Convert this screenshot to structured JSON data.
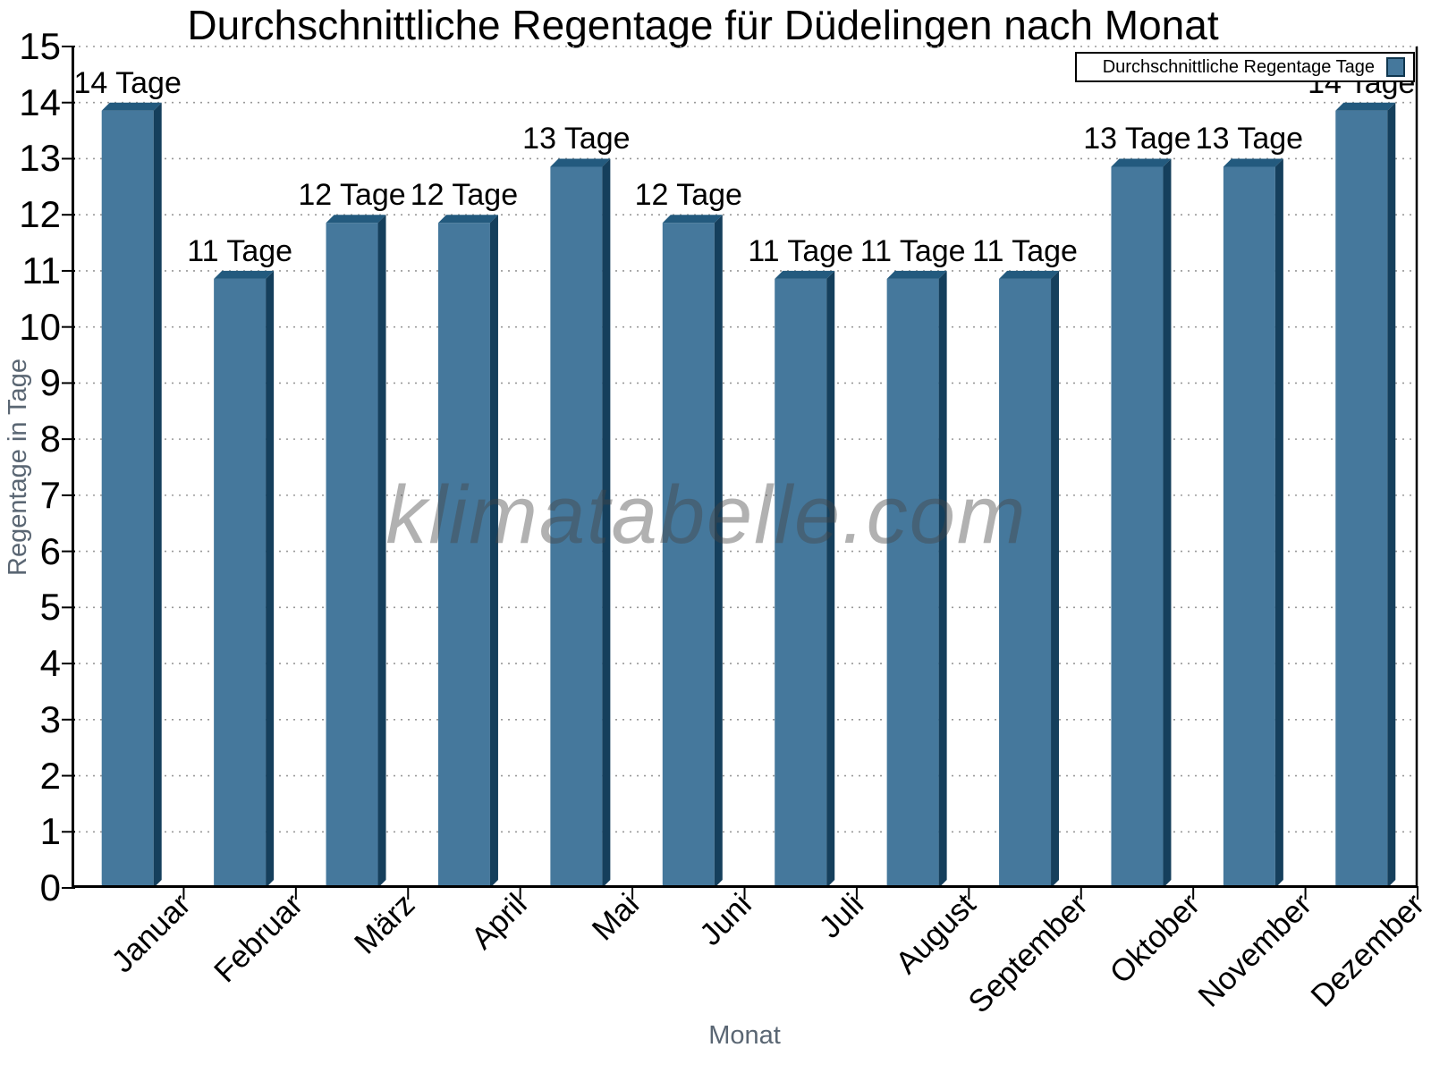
{
  "watermark": "klimatabelle.com",
  "chart_data": {
    "type": "bar",
    "title": "Durchschnittliche Regentage für Düdelingen nach Monat",
    "xlabel": "Monat",
    "ylabel": "Regentage in Tage",
    "legend": {
      "label": "Durchschnittliche Regentage Tage",
      "position": "top-right"
    },
    "categories": [
      "Januar",
      "Februar",
      "März",
      "April",
      "Mai",
      "Juni",
      "Juli",
      "August",
      "September",
      "Oktober",
      "November",
      "Dezember"
    ],
    "values": [
      14,
      11,
      12,
      12,
      13,
      12,
      11,
      11,
      11,
      13,
      13,
      14
    ],
    "value_labels": [
      "14 Tage",
      "11 Tage",
      "12 Tage",
      "12 Tage",
      "13 Tage",
      "12 Tage",
      "11 Tage",
      "11 Tage",
      "11 Tage",
      "13 Tage",
      "13 Tage",
      "14 Tage"
    ],
    "ylim": [
      0,
      15
    ],
    "ytick_step": 1,
    "ytick_labels": [
      "0",
      "1",
      "2",
      "3",
      "4",
      "5",
      "6",
      "7",
      "8",
      "9",
      "10",
      "11",
      "12",
      "13",
      "14",
      "15"
    ],
    "grid": "horizontal-dotted",
    "colors": {
      "bar_face": "#45789C",
      "bar_top": "#235A7E",
      "bar_side": "#153F5C",
      "axis": "#000000",
      "axis_title": "#5A6673",
      "grid": "#999999",
      "watermark_gray": "#ABABAB"
    }
  }
}
